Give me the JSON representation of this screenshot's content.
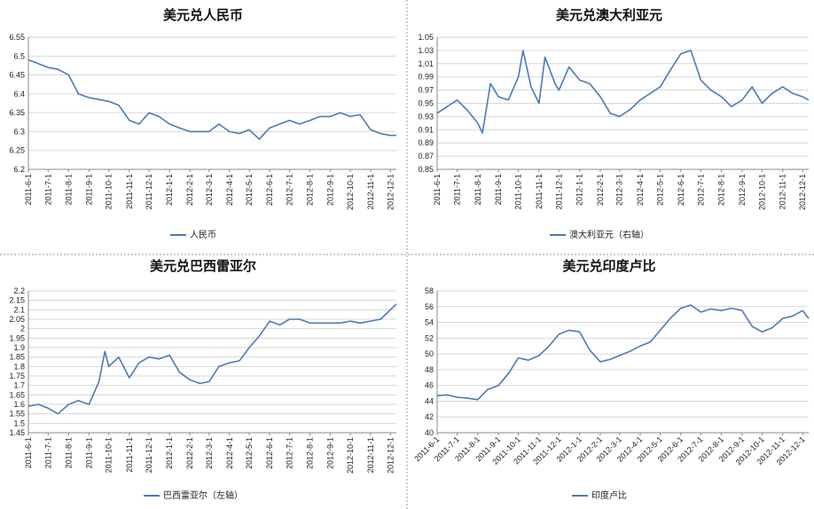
{
  "colors": {
    "series": "#4a7ab8",
    "grid": "#d6d6d6"
  },
  "chart_data": [
    {
      "type": "line",
      "title": "美元兑人民币",
      "legend": [
        "人民币"
      ],
      "legend_position": "bottom",
      "grid": true,
      "ylim": [
        6.2,
        6.55
      ],
      "yticks": [
        "6.2",
        "6.25",
        "6.3",
        "6.35",
        "6.4",
        "6.45",
        "6.5",
        "6.55"
      ],
      "xticks": [
        "2011-6-1",
        "2011-7-1",
        "2011-8-1",
        "2011-9-1",
        "2011-10-1",
        "2011-11-1",
        "2011-12-1",
        "2012-1-1",
        "2012-2-1",
        "2012-3-1",
        "2012-4-1",
        "2012-5-1",
        "2012-6-1",
        "2012-7-1",
        "2012-8-1",
        "2012-9-1",
        "2012-10-1",
        "2012-11-1",
        "2012-12-1"
      ],
      "series": [
        {
          "name": "人民币",
          "x": [
            "2011-6-1",
            "2011-6-16",
            "2011-7-1",
            "2011-7-16",
            "2011-8-1",
            "2011-8-16",
            "2011-9-1",
            "2011-9-16",
            "2011-10-1",
            "2011-10-16",
            "2011-11-1",
            "2011-11-16",
            "2011-12-1",
            "2011-12-16",
            "2012-1-1",
            "2012-1-16",
            "2012-2-1",
            "2012-2-16",
            "2012-3-1",
            "2012-3-16",
            "2012-4-1",
            "2012-4-16",
            "2012-5-1",
            "2012-5-16",
            "2012-6-1",
            "2012-6-16",
            "2012-7-1",
            "2012-7-16",
            "2012-8-1",
            "2012-8-16",
            "2012-9-1",
            "2012-9-16",
            "2012-10-1",
            "2012-10-16",
            "2012-11-1",
            "2012-11-16",
            "2012-12-1",
            "2012-12-10"
          ],
          "y": [
            6.49,
            6.48,
            6.47,
            6.465,
            6.45,
            6.4,
            6.39,
            6.385,
            6.38,
            6.37,
            6.33,
            6.32,
            6.35,
            6.34,
            6.32,
            6.31,
            6.3,
            6.3,
            6.3,
            6.32,
            6.3,
            6.295,
            6.305,
            6.28,
            6.31,
            6.32,
            6.33,
            6.32,
            6.33,
            6.34,
            6.34,
            6.35,
            6.34,
            6.345,
            6.305,
            6.295,
            6.29,
            6.29
          ]
        }
      ]
    },
    {
      "type": "line",
      "title": "美元兑澳大利亚元",
      "legend": [
        "澳大利亚元（右轴）"
      ],
      "legend_position": "bottom",
      "grid": true,
      "ylim": [
        0.85,
        1.05
      ],
      "yticks": [
        "0.85",
        "0.87",
        "0.89",
        "0.91",
        "0.93",
        "0.95",
        "0.97",
        "0.99",
        "1.01",
        "1.03",
        "1.05"
      ],
      "xticks": [
        "2011-6-1",
        "2011-7-1",
        "2011-8-1",
        "2011-9-1",
        "2011-10-1",
        "2011-11-1",
        "2011-12-1",
        "2012-1-1",
        "2012-2-1",
        "2012-3-1",
        "2012-4-1",
        "2012-5-1",
        "2012-6-1",
        "2012-7-1",
        "2012-8-1",
        "2012-9-1",
        "2012-10-1",
        "2012-11-1",
        "2012-12-1"
      ],
      "series": [
        {
          "name": "澳大利亚元（右轴）",
          "x": [
            "2011-6-1",
            "2011-6-16",
            "2011-7-1",
            "2011-7-16",
            "2011-8-1",
            "2011-8-8",
            "2011-8-20",
            "2011-9-1",
            "2011-9-16",
            "2011-10-1",
            "2011-10-8",
            "2011-10-20",
            "2011-11-1",
            "2011-11-10",
            "2011-11-25",
            "2011-12-1",
            "2011-12-16",
            "2012-1-1",
            "2012-1-16",
            "2012-2-1",
            "2012-2-16",
            "2012-3-1",
            "2012-3-16",
            "2012-4-1",
            "2012-4-16",
            "2012-5-1",
            "2012-5-16",
            "2012-6-1",
            "2012-6-16",
            "2012-7-1",
            "2012-7-16",
            "2012-8-1",
            "2012-8-16",
            "2012-9-1",
            "2012-9-16",
            "2012-10-1",
            "2012-10-16",
            "2012-11-1",
            "2012-11-16",
            "2012-12-1",
            "2012-12-10"
          ],
          "y": [
            0.935,
            0.945,
            0.955,
            0.94,
            0.92,
            0.905,
            0.98,
            0.96,
            0.955,
            0.99,
            1.03,
            0.975,
            0.95,
            1.02,
            0.98,
            0.97,
            1.005,
            0.985,
            0.98,
            0.96,
            0.935,
            0.93,
            0.94,
            0.955,
            0.965,
            0.975,
            1.0,
            1.025,
            1.03,
            0.985,
            0.97,
            0.96,
            0.945,
            0.955,
            0.975,
            0.95,
            0.965,
            0.975,
            0.965,
            0.96,
            0.955
          ]
        }
      ]
    },
    {
      "type": "line",
      "title": "美元兑巴西雷亚尔",
      "legend": [
        "巴西雷亚尔（左轴）"
      ],
      "legend_position": "bottom",
      "grid": true,
      "ylim": [
        1.45,
        2.2
      ],
      "yticks": [
        "1.45",
        "1.5",
        "1.55",
        "1.6",
        "1.65",
        "1.7",
        "1.75",
        "1.8",
        "1.85",
        "1.9",
        "1.95",
        "2",
        "2.05",
        "2.1",
        "2.15",
        "2.2"
      ],
      "xticks": [
        "2011-6-1",
        "2011-7-1",
        "2011-8-1",
        "2011-9-1",
        "2011-10-1",
        "2011-11-1",
        "2011-12-1",
        "2012-1-1",
        "2012-2-1",
        "2012-3-1",
        "2012-4-1",
        "2012-5-1",
        "2012-6-1",
        "2012-7-1",
        "2012-8-1",
        "2012-9-1",
        "2012-10-1",
        "2012-11-1",
        "2012-12-1"
      ],
      "series": [
        {
          "name": "巴西雷亚尔（左轴）",
          "x": [
            "2011-6-1",
            "2011-6-16",
            "2011-7-1",
            "2011-7-16",
            "2011-8-1",
            "2011-8-16",
            "2011-9-1",
            "2011-9-16",
            "2011-9-25",
            "2011-10-1",
            "2011-10-16",
            "2011-11-1",
            "2011-11-16",
            "2011-12-1",
            "2011-12-16",
            "2012-1-1",
            "2012-1-16",
            "2012-2-1",
            "2012-2-16",
            "2012-3-1",
            "2012-3-16",
            "2012-4-1",
            "2012-4-16",
            "2012-5-1",
            "2012-5-16",
            "2012-6-1",
            "2012-6-16",
            "2012-7-1",
            "2012-7-16",
            "2012-8-1",
            "2012-8-16",
            "2012-9-1",
            "2012-9-16",
            "2012-10-1",
            "2012-10-16",
            "2012-11-1",
            "2012-11-16",
            "2012-12-1",
            "2012-12-10"
          ],
          "y": [
            1.59,
            1.6,
            1.58,
            1.55,
            1.6,
            1.62,
            1.6,
            1.72,
            1.88,
            1.8,
            1.85,
            1.74,
            1.82,
            1.85,
            1.84,
            1.86,
            1.77,
            1.73,
            1.71,
            1.72,
            1.8,
            1.82,
            1.83,
            1.9,
            1.96,
            2.04,
            2.02,
            2.05,
            2.05,
            2.03,
            2.03,
            2.03,
            2.03,
            2.04,
            2.03,
            2.04,
            2.05,
            2.1,
            2.13
          ]
        }
      ]
    },
    {
      "type": "line",
      "title": "美元兑印度卢比",
      "legend": [
        "印度卢比"
      ],
      "legend_position": "bottom",
      "grid": true,
      "ylim": [
        40,
        58
      ],
      "yticks": [
        "40",
        "42",
        "44",
        "46",
        "48",
        "50",
        "52",
        "54",
        "56",
        "58"
      ],
      "xticks": [
        "2011-6-1",
        "2011-7-1",
        "2011-8-1",
        "2011-9-1",
        "2011-10-1",
        "2011-11-1",
        "2011-12-1",
        "2012-1-1",
        "2012-2-1",
        "2012-3-1",
        "2012-4-1",
        "2012-5-1",
        "2012-6-1",
        "2012-7-1",
        "2012-8-1",
        "2012-9-1",
        "2012-10-1",
        "2012-11-1",
        "2012-12-1"
      ],
      "series": [
        {
          "name": "印度卢比",
          "x": [
            "2011-6-1",
            "2011-6-16",
            "2011-7-1",
            "2011-7-16",
            "2011-8-1",
            "2011-8-16",
            "2011-9-1",
            "2011-9-16",
            "2011-10-1",
            "2011-10-16",
            "2011-11-1",
            "2011-11-16",
            "2011-12-1",
            "2011-12-16",
            "2012-1-1",
            "2012-1-16",
            "2012-2-1",
            "2012-2-16",
            "2012-3-1",
            "2012-3-16",
            "2012-4-1",
            "2012-4-16",
            "2012-5-1",
            "2012-5-16",
            "2012-6-1",
            "2012-6-16",
            "2012-7-1",
            "2012-7-16",
            "2012-8-1",
            "2012-8-16",
            "2012-9-1",
            "2012-9-16",
            "2012-10-1",
            "2012-10-16",
            "2012-11-1",
            "2012-11-16",
            "2012-12-1",
            "2012-12-10"
          ],
          "y": [
            44.7,
            44.8,
            44.5,
            44.4,
            44.2,
            45.5,
            46,
            47.5,
            49.5,
            49.2,
            49.8,
            51,
            52.5,
            53,
            52.8,
            50.5,
            49,
            49.3,
            49.8,
            50.3,
            51,
            51.5,
            53,
            54.5,
            55.8,
            56.2,
            55.3,
            55.7,
            55.5,
            55.8,
            55.5,
            53.5,
            52.8,
            53.3,
            54.5,
            54.8,
            55.5,
            54.5
          ]
        }
      ]
    }
  ]
}
